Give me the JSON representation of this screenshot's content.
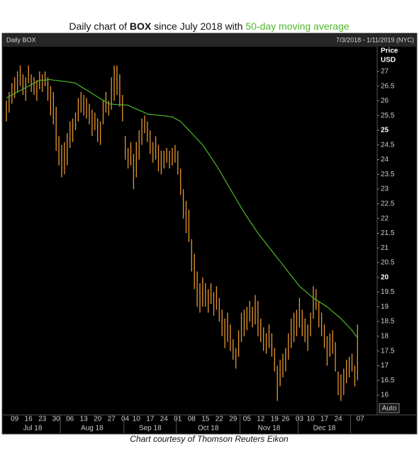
{
  "chart_data": {
    "type": "ohlc",
    "title_parts": [
      "Daily chart of ",
      "BOX",
      " since July 2018 with ",
      "50-day moving average"
    ],
    "header_left": "Daily BOX",
    "header_right": "7/3/2018 - 1/11/2019 (NYC)",
    "y_axis_label": [
      "Price",
      "USD"
    ],
    "auto_button": "Auto",
    "caption": "Chart courtesy of Thomson Reuters Eikon",
    "categories": [
      null,
      null,
      null,
      "09",
      null,
      null,
      null,
      null,
      "16",
      null,
      null,
      null,
      null,
      "23",
      null,
      null,
      null,
      null,
      "30",
      null,
      null,
      null,
      null,
      "06",
      null,
      null,
      null,
      null,
      "13",
      null,
      null,
      null,
      null,
      "20",
      null,
      null,
      null,
      null,
      "27",
      null,
      null,
      null,
      null,
      "04",
      null,
      null,
      null,
      "10",
      null,
      null,
      null,
      null,
      "17",
      null,
      null,
      null,
      null,
      "24",
      null,
      null,
      null,
      null,
      "01",
      null,
      null,
      null,
      null,
      "08",
      null,
      null,
      null,
      null,
      "15",
      null,
      null,
      null,
      null,
      "22",
      null,
      null,
      null,
      null,
      "29",
      null,
      null,
      null,
      null,
      "05",
      null,
      null,
      null,
      null,
      "12",
      null,
      null,
      null,
      null,
      "19",
      null,
      null,
      null,
      "26",
      null,
      null,
      null,
      null,
      "03",
      null,
      null,
      null,
      "10",
      null,
      null,
      null,
      null,
      "17",
      null,
      null,
      null,
      null,
      "24",
      null,
      null,
      null,
      null,
      null,
      null,
      null,
      "07"
    ],
    "category_months": [
      "Jul 18",
      "Jul 18",
      "Jul 18",
      "Jul 18",
      "Jul 18",
      "Jul 18",
      "Jul 18",
      "Jul 18",
      "Jul 18",
      "Jul 18",
      "Jul 18",
      "Jul 18",
      "Jul 18",
      "Jul 18",
      "Jul 18",
      "Jul 18",
      "Jul 18",
      "Jul 18",
      "Jul 18",
      "Jul 18",
      "Aug 18",
      "Aug 18",
      "Aug 18",
      "Aug 18",
      "Aug 18",
      "Aug 18",
      "Aug 18",
      "Aug 18",
      "Aug 18",
      "Aug 18",
      "Aug 18",
      "Aug 18",
      "Aug 18",
      "Aug 18",
      "Aug 18",
      "Aug 18",
      "Aug 18",
      "Aug 18",
      "Aug 18",
      "Aug 18",
      "Aug 18",
      "Aug 18",
      "Aug 18",
      "Sep 18",
      "Sep 18",
      "Sep 18",
      "Sep 18",
      "Sep 18",
      "Sep 18",
      "Sep 18",
      "Sep 18",
      "Sep 18",
      "Sep 18",
      "Sep 18",
      "Sep 18",
      "Sep 18",
      "Sep 18",
      "Sep 18",
      "Sep 18",
      "Sep 18",
      "Sep 18",
      "Sep 18",
      "Oct 18",
      "Oct 18",
      "Oct 18",
      "Oct 18",
      "Oct 18",
      "Oct 18",
      "Oct 18",
      "Oct 18",
      "Oct 18",
      "Oct 18",
      "Oct 18",
      "Oct 18",
      "Oct 18",
      "Oct 18",
      "Oct 18",
      "Oct 18",
      "Oct 18",
      "Oct 18",
      "Oct 18",
      "Oct 18",
      "Oct 18",
      "Oct 18",
      "Oct 18",
      "Nov 18",
      "Nov 18",
      "Nov 18",
      "Nov 18",
      "Nov 18",
      "Nov 18",
      "Nov 18",
      "Nov 18",
      "Nov 18",
      "Nov 18",
      "Nov 18",
      "Nov 18",
      "Nov 18",
      "Nov 18",
      "Nov 18",
      "Nov 18",
      "Nov 18",
      "Nov 18",
      "Nov 18",
      "Nov 18",
      "Nov 18",
      "Dec 18",
      "Dec 18",
      "Dec 18",
      "Dec 18",
      "Dec 18",
      "Dec 18",
      "Dec 18",
      "Dec 18",
      "Dec 18",
      "Dec 18",
      "Dec 18",
      "Dec 18",
      "Dec 18",
      "Dec 18",
      "Dec 18",
      "Dec 18",
      "Dec 18",
      "Dec 18",
      "Dec 18",
      null,
      null,
      null,
      null
    ],
    "ylim": [
      15.35,
      27.79
    ],
    "yticks": [
      16,
      16.5,
      17,
      17.5,
      18,
      18.5,
      19,
      19.5,
      20,
      20.5,
      21,
      21.5,
      22,
      22.5,
      23,
      23.5,
      24,
      24.5,
      25,
      25.5,
      26,
      26.5,
      27
    ],
    "bold_tick_every": 5,
    "series": [
      {
        "type": "ohlc",
        "color": "#e8962e",
        "high": [
          26.0,
          26.3,
          26.6,
          26.8,
          27.0,
          27.2,
          26.9,
          26.8,
          27.2,
          26.9,
          26.8,
          26.7,
          27.0,
          26.9,
          27.0,
          26.8,
          26.5,
          26.3,
          25.8,
          24.8,
          24.5,
          24.6,
          24.9,
          25.3,
          25.4,
          25.6,
          26.1,
          26.3,
          26.2,
          26.1,
          25.9,
          25.7,
          25.6,
          25.4,
          25.3,
          26.0,
          26.3,
          26.0,
          26.8,
          27.2,
          27.2,
          26.9,
          26.2,
          24.8,
          24.4,
          24.6,
          24.2,
          24.6,
          25.0,
          25.4,
          25.5,
          25.3,
          25.0,
          24.6,
          24.8,
          24.5,
          24.3,
          24.3,
          24.4,
          24.3,
          24.4,
          24.5,
          24.3,
          23.7,
          23.0,
          22.6,
          22.3,
          21.3,
          20.8,
          20.2,
          19.8,
          20.0,
          19.8,
          19.6,
          19.8,
          19.5,
          19.7,
          19.3,
          18.9,
          18.6,
          18.8,
          18.4,
          17.9,
          17.6,
          18.2,
          18.8,
          18.9,
          19.0,
          19.2,
          19.0,
          19.4,
          19.2,
          18.6,
          18.3,
          18.1,
          18.4,
          18.1,
          17.6,
          17.0,
          17.2,
          17.4,
          17.6,
          18.1,
          18.6,
          18.8,
          18.9,
          19.3,
          18.9,
          18.6,
          18.4,
          18.8,
          19.7,
          19.6,
          19.2,
          18.8,
          18.4,
          18.0,
          18.1,
          18.2,
          17.8,
          16.8,
          16.7,
          16.9,
          17.2,
          17.3,
          17.4,
          17.0,
          18.4,
          null
        ],
        "low": [
          25.3,
          25.6,
          25.9,
          26.1,
          26.3,
          26.5,
          26.2,
          26.0,
          26.6,
          26.3,
          26.2,
          26.0,
          26.4,
          26.3,
          26.5,
          26.0,
          25.5,
          25.2,
          24.3,
          23.8,
          23.4,
          23.5,
          23.8,
          24.4,
          24.6,
          25.0,
          25.3,
          25.6,
          25.5,
          25.4,
          25.2,
          24.8,
          25.0,
          24.6,
          24.5,
          25.2,
          25.6,
          25.5,
          25.7,
          26.0,
          26.2,
          25.8,
          25.3,
          24.0,
          23.7,
          23.8,
          23.0,
          23.4,
          24.0,
          24.5,
          24.9,
          24.6,
          24.2,
          23.9,
          24.0,
          23.6,
          23.5,
          23.7,
          23.9,
          23.7,
          23.8,
          23.9,
          23.5,
          22.8,
          22.0,
          21.5,
          21.2,
          20.2,
          19.6,
          19.0,
          18.8,
          19.0,
          19.0,
          18.8,
          19.1,
          18.7,
          18.9,
          18.5,
          18.0,
          17.6,
          17.8,
          17.5,
          17.2,
          16.9,
          17.3,
          17.8,
          18.0,
          18.2,
          18.5,
          18.3,
          18.4,
          18.0,
          17.8,
          17.5,
          17.4,
          17.6,
          17.3,
          16.8,
          15.8,
          16.3,
          16.6,
          16.8,
          17.2,
          17.6,
          17.8,
          18.0,
          18.3,
          18.0,
          17.8,
          17.5,
          18.0,
          18.6,
          18.9,
          18.3,
          18.0,
          17.6,
          17.0,
          17.3,
          17.4,
          16.8,
          16.0,
          15.8,
          16.0,
          16.4,
          16.6,
          16.8,
          16.3,
          16.5,
          null
        ]
      },
      {
        "type": "line",
        "color": "#4fb82a",
        "values": [
          26.1,
          26.15,
          26.2,
          26.25,
          26.3,
          26.35,
          26.4,
          26.45,
          26.5,
          26.55,
          26.6,
          26.65,
          26.7,
          26.7,
          26.7,
          26.72,
          26.72,
          26.7,
          26.7,
          26.68,
          26.67,
          26.66,
          26.65,
          26.63,
          26.62,
          26.6,
          26.54,
          26.48,
          26.42,
          26.37,
          26.31,
          26.25,
          26.19,
          26.13,
          26.07,
          26.02,
          25.96,
          25.9,
          25.89,
          25.88,
          25.87,
          25.87,
          25.86,
          25.86,
          25.85,
          25.8,
          25.76,
          25.72,
          25.68,
          25.64,
          25.6,
          25.55,
          25.54,
          25.53,
          25.52,
          25.51,
          25.5,
          25.49,
          25.48,
          25.46,
          25.45,
          25.4,
          25.35,
          25.3,
          25.2,
          25.1,
          25.0,
          24.9,
          24.8,
          24.7,
          24.6,
          24.5,
          24.36,
          24.22,
          24.08,
          23.94,
          23.8,
          23.64,
          23.48,
          23.32,
          23.16,
          23.0,
          22.84,
          22.68,
          22.52,
          22.36,
          22.2,
          22.06,
          21.92,
          21.78,
          21.64,
          21.5,
          21.38,
          21.26,
          21.14,
          21.02,
          20.9,
          20.78,
          20.66,
          20.54,
          20.42,
          20.3,
          20.18,
          20.06,
          19.94,
          19.82,
          19.7,
          19.62,
          19.54,
          19.46,
          19.38,
          19.3,
          19.24,
          19.18,
          19.12,
          19.06,
          19.0,
          18.92,
          18.84,
          18.76,
          18.68,
          18.6,
          18.5,
          18.4,
          18.3,
          18.2,
          18.07,
          17.95,
          null
        ]
      }
    ]
  }
}
